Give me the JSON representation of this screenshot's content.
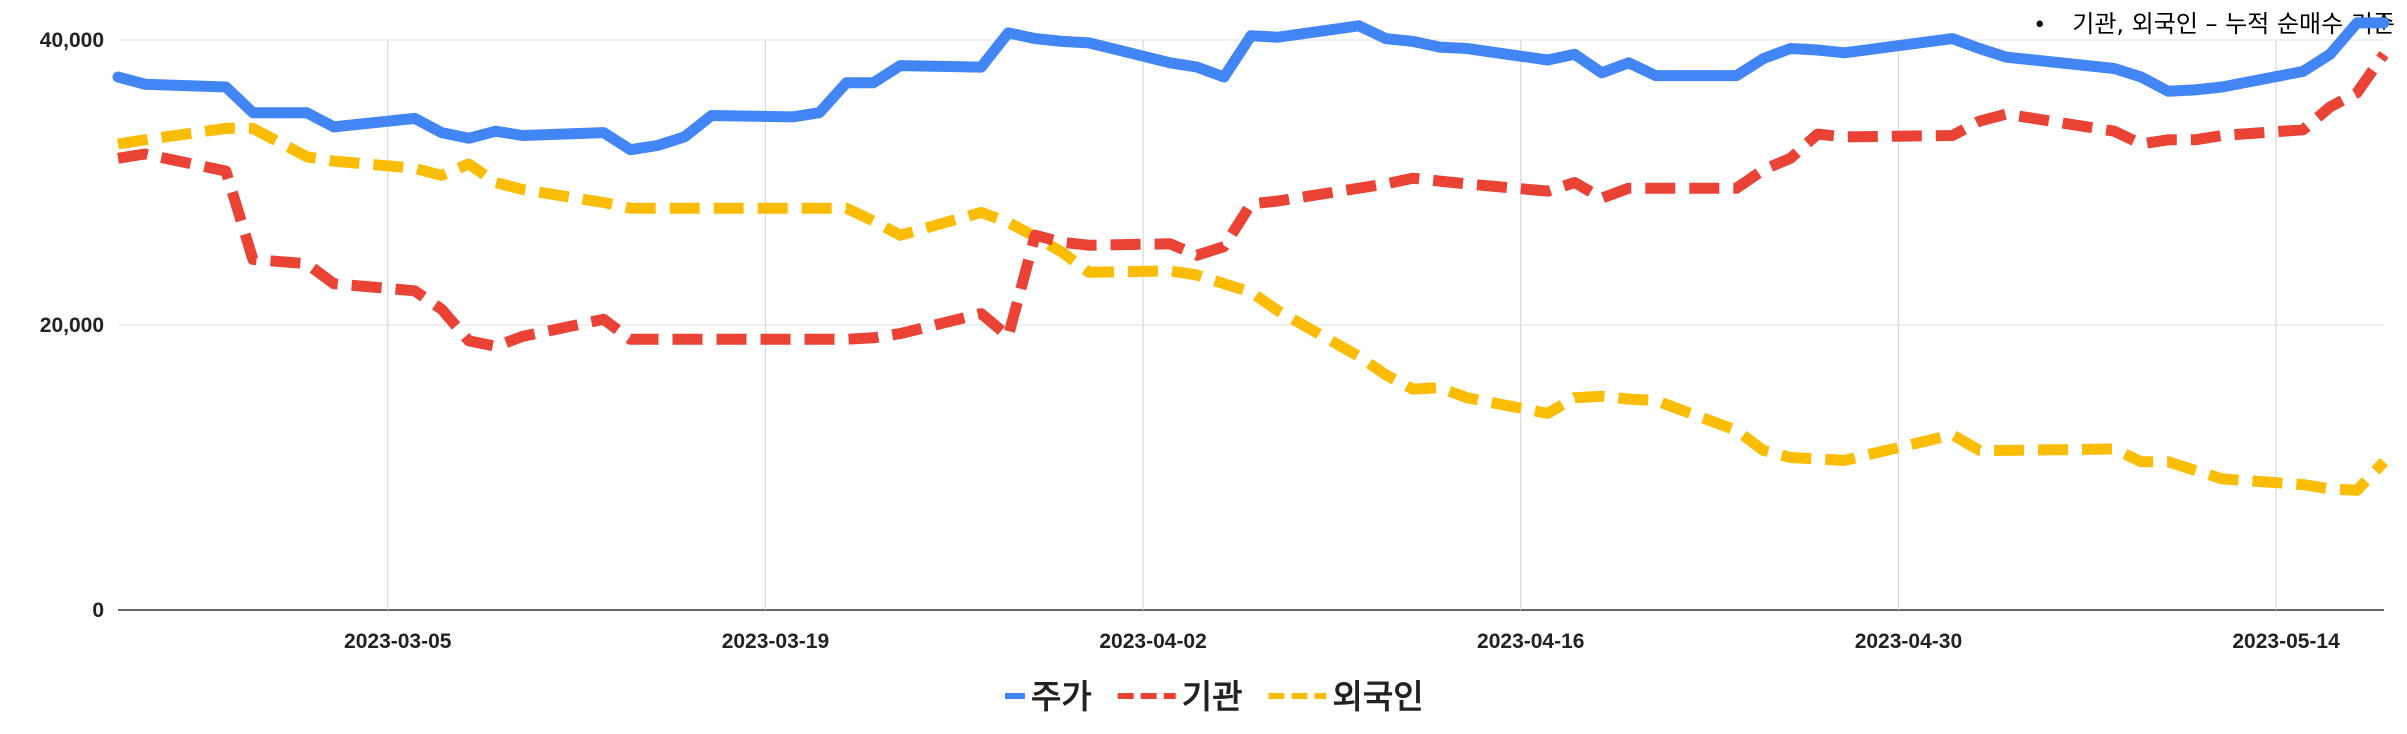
{
  "note": {
    "bullet": "•",
    "text": "기관, 외국인 – 누적 순매수 기준"
  },
  "chart_data": {
    "type": "line",
    "ylim": [
      0,
      40000
    ],
    "y_ticks": [
      0,
      20000,
      40000
    ],
    "y_tick_labels": [
      "0",
      "20,000",
      "40,000"
    ],
    "x_range": [
      "2023-02-23",
      "2023-05-18"
    ],
    "x_ticks": [
      "2023-03-05",
      "2023-03-19",
      "2023-04-02",
      "2023-04-16",
      "2023-04-30",
      "2023-05-14"
    ],
    "grid": true,
    "legend": "bottom",
    "x": [
      "2023-02-23",
      "2023-02-24",
      "2023-02-27",
      "2023-02-28",
      "2023-03-02",
      "2023-03-03",
      "2023-03-06",
      "2023-03-07",
      "2023-03-08",
      "2023-03-09",
      "2023-03-10",
      "2023-03-13",
      "2023-03-14",
      "2023-03-15",
      "2023-03-16",
      "2023-03-17",
      "2023-03-20",
      "2023-03-21",
      "2023-03-22",
      "2023-03-23",
      "2023-03-24",
      "2023-03-27",
      "2023-03-28",
      "2023-03-29",
      "2023-03-30",
      "2023-03-31",
      "2023-04-03",
      "2023-04-04",
      "2023-04-05",
      "2023-04-06",
      "2023-04-07",
      "2023-04-10",
      "2023-04-11",
      "2023-04-12",
      "2023-04-13",
      "2023-04-14",
      "2023-04-17",
      "2023-04-18",
      "2023-04-19",
      "2023-04-20",
      "2023-04-21",
      "2023-04-24",
      "2023-04-25",
      "2023-04-26",
      "2023-04-27",
      "2023-04-28",
      "2023-05-02",
      "2023-05-03",
      "2023-05-04",
      "2023-05-08",
      "2023-05-09",
      "2023-05-10",
      "2023-05-11",
      "2023-05-12",
      "2023-05-15",
      "2023-05-16",
      "2023-05-17",
      "2023-05-18"
    ],
    "series": [
      {
        "name": "주가",
        "color": "#4285f4",
        "style": "solid",
        "values": [
          37400,
          36900,
          36700,
          34900,
          34900,
          33900,
          34500,
          33500,
          33100,
          33600,
          33300,
          33500,
          32300,
          32600,
          33200,
          34700,
          34600,
          34900,
          37000,
          37000,
          38200,
          38100,
          40500,
          40100,
          39900,
          39800,
          38400,
          38100,
          37400,
          40300,
          40200,
          41000,
          40100,
          39900,
          39500,
          39400,
          38600,
          39000,
          37700,
          38400,
          37500,
          37500,
          38700,
          39400,
          39300,
          39100,
          40100,
          39400,
          38800,
          38000,
          37400,
          36400,
          36500,
          36700,
          37800,
          39000,
          41200,
          41200
        ],
        "values_note_end": "",
        "end_values": []
      },
      {
        "name": "기관",
        "color": "#ea4335",
        "style": "dashed",
        "values": [
          31700,
          32000,
          30800,
          24600,
          24300,
          22900,
          22400,
          21100,
          18900,
          18500,
          19200,
          20400,
          19000,
          19000,
          19000,
          19000,
          19000,
          19000,
          19000,
          19100,
          19400,
          20800,
          19200,
          26300,
          25800,
          25600,
          25700,
          24900,
          25500,
          28500,
          28700,
          29600,
          29900,
          30300,
          30100,
          29900,
          29400,
          30000,
          28900,
          29600,
          29600,
          29600,
          30900,
          31700,
          33400,
          33200,
          33300,
          34300,
          34800,
          33600,
          32700,
          33000,
          33000,
          33300,
          33700,
          35300,
          36300,
          39000
        ],
        "end_values": []
      },
      {
        "name": "외국인",
        "color": "#fbbc04",
        "style": "dashed",
        "values": [
          32700,
          33000,
          33800,
          33800,
          31800,
          31500,
          31000,
          30500,
          31300,
          30000,
          29500,
          28600,
          28200,
          28200,
          28200,
          28200,
          28200,
          28200,
          28200,
          27300,
          26300,
          27900,
          27200,
          26200,
          25100,
          23700,
          23800,
          23500,
          22900,
          22300,
          21000,
          17800,
          16500,
          15500,
          15600,
          14900,
          13800,
          14900,
          15000,
          14800,
          14700,
          12600,
          11200,
          10700,
          10600,
          10500,
          12300,
          11200,
          11200,
          11300,
          10400,
          10400,
          9800,
          9200,
          8800,
          8500,
          8400,
          10400
        ],
        "end_values": []
      }
    ]
  }
}
